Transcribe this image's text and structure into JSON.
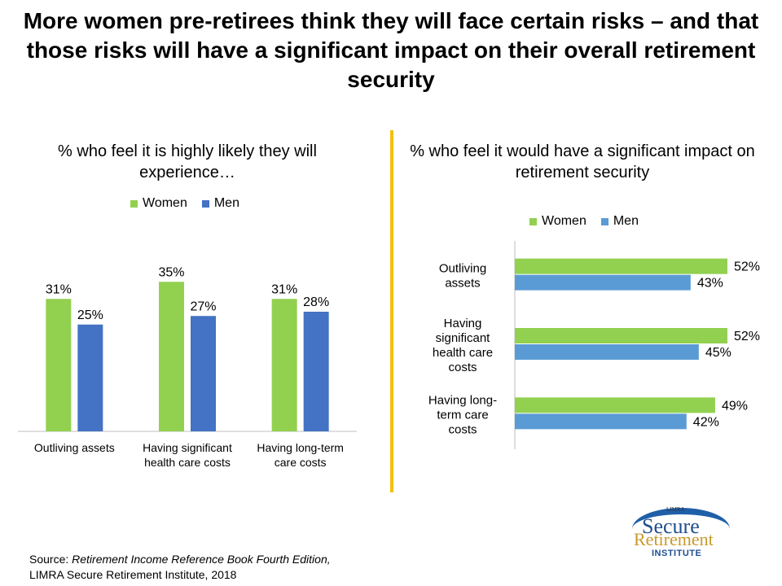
{
  "page": {
    "title": "More women pre-retirees think they will face certain risks – and that those risks will have a significant impact on their overall retirement security",
    "source_prefix": "Source: ",
    "source_italic": "Retirement Income Reference Book Fourth Edition,",
    "source_line2": "LIMRA Secure Retirement Institute,  2018",
    "divider_color": "#F2C10E",
    "logo": {
      "small": "LIMRA",
      "line1": "Secure",
      "line2": "Retirement",
      "line3": "INSTITUTE"
    }
  },
  "chart_data": [
    {
      "type": "bar",
      "orientation": "vertical",
      "title": "% who feel it is highly likely they will experience…",
      "categories": [
        "Outliving assets",
        "Having significant health care costs",
        "Having long-term care costs"
      ],
      "category_lines": [
        [
          "Outliving assets"
        ],
        [
          "Having significant",
          "health care costs"
        ],
        [
          "Having long-term",
          "care costs"
        ]
      ],
      "series": [
        {
          "name": "Women",
          "values": [
            31,
            35,
            31
          ],
          "labels": [
            "31%",
            "35%",
            "31%"
          ],
          "color": "#92D050"
        },
        {
          "name": "Men",
          "values": [
            25,
            27,
            28
          ],
          "labels": [
            "25%",
            "27%",
            "28%"
          ],
          "color": "#4472C4"
        }
      ],
      "ylim": [
        0,
        40
      ],
      "legend": "top",
      "grid": false
    },
    {
      "type": "bar",
      "orientation": "horizontal",
      "title": "% who feel it would have a significant impact on retirement security",
      "categories": [
        "Outliving assets",
        "Having significant health care costs",
        "Having long-term care costs"
      ],
      "category_lines": [
        [
          "Outliving",
          "assets"
        ],
        [
          "Having",
          "significant",
          "health care",
          "costs"
        ],
        [
          "Having long-",
          "term care",
          "costs"
        ]
      ],
      "series": [
        {
          "name": "Women",
          "values": [
            52,
            52,
            49
          ],
          "labels": [
            "52%",
            "52%",
            "49%"
          ],
          "color": "#92D050"
        },
        {
          "name": "Men",
          "values": [
            43,
            45,
            42
          ],
          "labels": [
            "43%",
            "45%",
            "42%"
          ],
          "color": "#5B9BD5"
        }
      ],
      "xlim": [
        0,
        60
      ],
      "legend": "top",
      "grid": false
    }
  ]
}
